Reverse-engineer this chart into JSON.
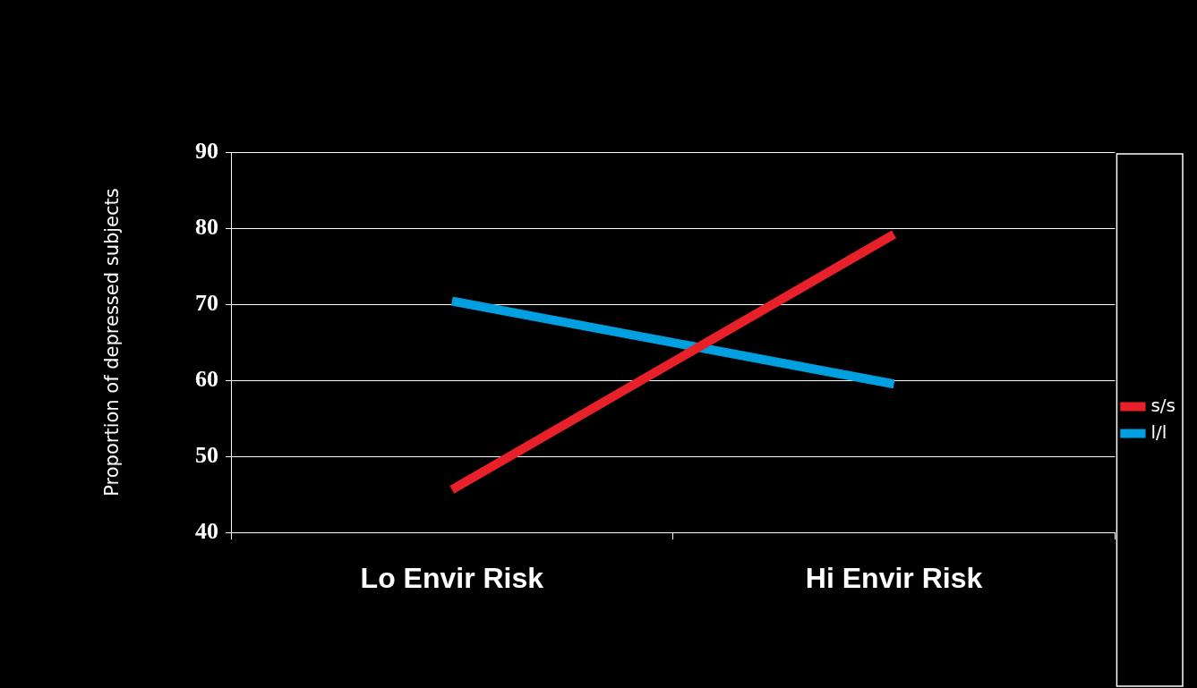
{
  "chart_data": {
    "type": "line",
    "ylabel": "Proportion of depressed subjects",
    "categories": [
      "Lo Envir Risk",
      "Hi Envir Risk"
    ],
    "series": [
      {
        "name": "s/s",
        "color": "#e8202a",
        "values": [
          45.6,
          79.2
        ]
      },
      {
        "name": "l/l",
        "color": "#00a0e0",
        "values": [
          70.4,
          59.5
        ]
      }
    ],
    "ylim": [
      40,
      90
    ],
    "yticks": [
      40,
      50,
      60,
      70,
      80,
      90
    ],
    "grid": "y",
    "legend": "right"
  }
}
